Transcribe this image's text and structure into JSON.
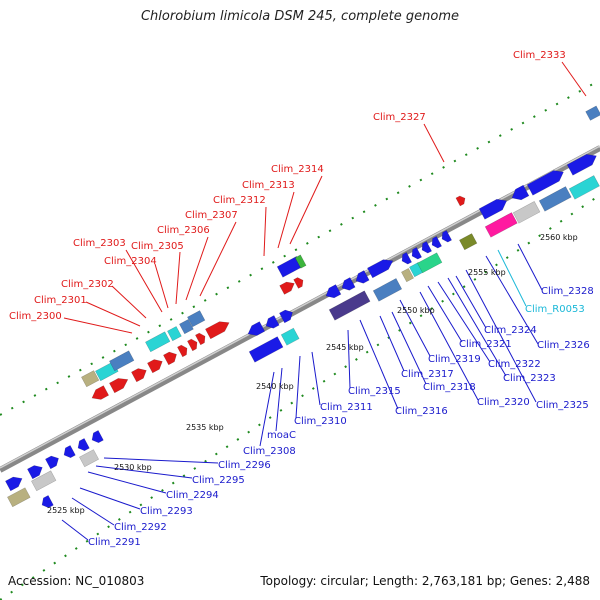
{
  "title": "Chlorobium limicola DSM 245, complete genome",
  "footer": {
    "accession": "Accession: NC_010803",
    "summary": "Topology: circular; Length: 2,763,181 bp; Genes: 2,488"
  },
  "colors": {
    "forward_gene": "#1a1ae6",
    "reverse_gene": "#e01a1a",
    "rna": "#2ad4d4",
    "label_red": "#e01a1a",
    "label_blue": "#1a1acc",
    "label_cyan": "#1ab8d8",
    "backbone": "#888888",
    "tick_green": "#1f8a1f"
  },
  "ticks": [
    "2525 kbp",
    "2530 kbp",
    "2535 kbp",
    "2540 kbp",
    "2545 kbp",
    "2550 kbp",
    "2555 kbp",
    "2560 kbp"
  ],
  "labels_top": [
    "Clim_2300",
    "Clim_2301",
    "Clim_2302",
    "Clim_2303",
    "Clim_2304",
    "Clim_2305",
    "Clim_2306",
    "Clim_2307",
    "Clim_2312",
    "Clim_2313",
    "Clim_2314",
    "Clim_2327",
    "Clim_2333"
  ],
  "labels_bottom": [
    "Clim_2291",
    "Clim_2292",
    "Clim_2293",
    "Clim_2294",
    "Clim_2295",
    "Clim_2296",
    "Clim_2308",
    "moaC",
    "Clim_2310",
    "Clim_2311",
    "Clim_2315",
    "Clim_2316",
    "Clim_2317",
    "Clim_2318",
    "Clim_2319",
    "Clim_2320",
    "Clim_2321",
    "Clim_2322",
    "Clim_2323",
    "Clim_2324",
    "Clim_2325",
    "Clim_2326",
    "Clim_2328",
    "Clim_R0053"
  ]
}
